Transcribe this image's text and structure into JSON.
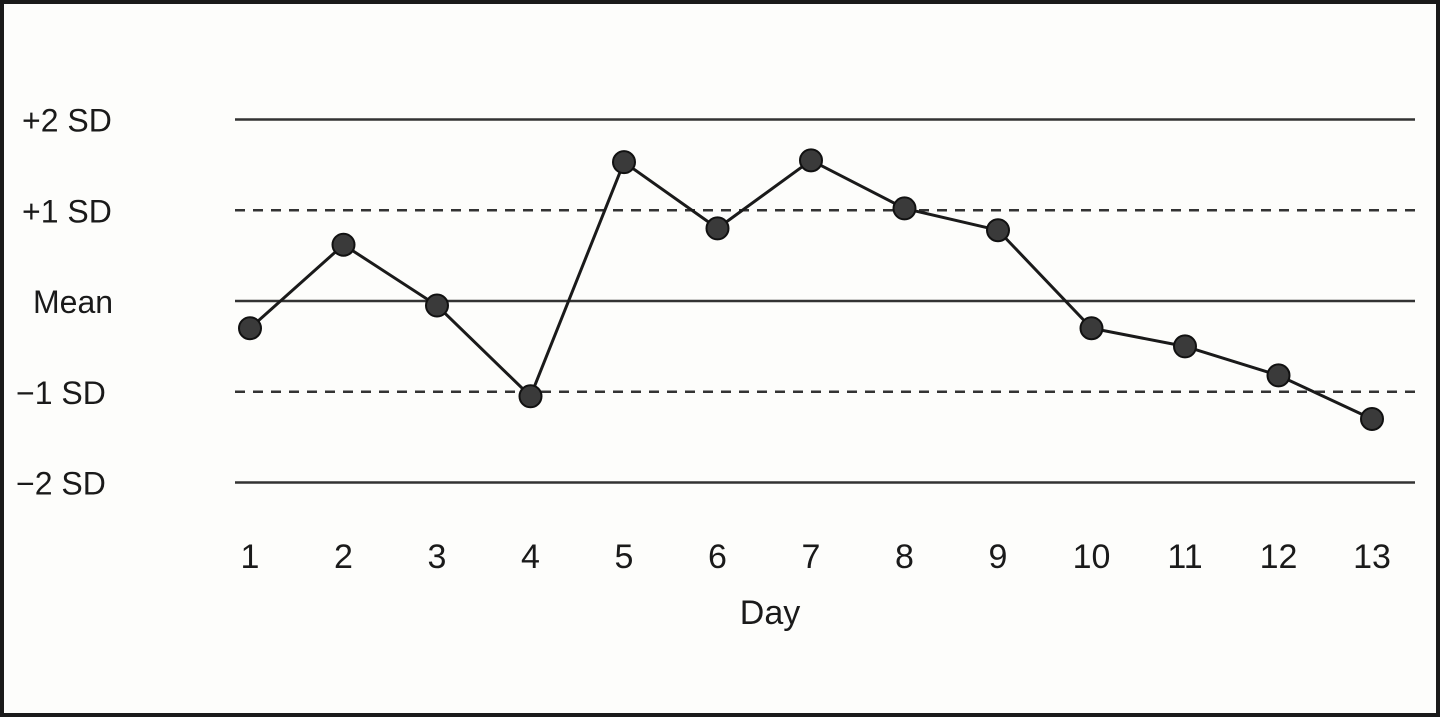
{
  "chart_data": {
    "type": "line",
    "title": "",
    "xlabel": "Day",
    "ylabel": "",
    "categories": [
      "1",
      "2",
      "3",
      "4",
      "5",
      "6",
      "7",
      "8",
      "9",
      "10",
      "11",
      "12",
      "13"
    ],
    "series": [
      {
        "values": [
          -0.3,
          0.62,
          -0.05,
          -1.05,
          1.53,
          0.8,
          1.55,
          1.02,
          0.78,
          -0.3,
          -0.5,
          -0.82,
          -1.3
        ]
      }
    ],
    "reference_lines": [
      {
        "label": "+2 SD",
        "value": 2,
        "style": "solid"
      },
      {
        "label": "+1 SD",
        "value": 1,
        "style": "dashed"
      },
      {
        "label": "Mean",
        "value": 0,
        "style": "solid"
      },
      {
        "label": "−1 SD",
        "value": -1,
        "style": "dashed"
      },
      {
        "label": "−2 SD",
        "value": -2,
        "style": "solid"
      }
    ],
    "ylim": [
      -2,
      2
    ],
    "grid": false,
    "colors": {
      "line": "#1a1a1a",
      "marker": "#3a3a3a",
      "reference": "#333333"
    }
  }
}
